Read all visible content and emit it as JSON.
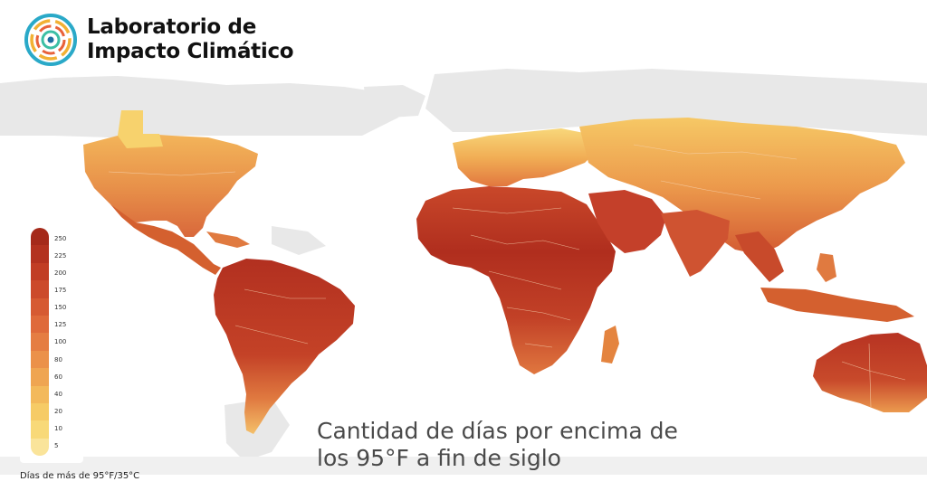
{
  "brand": {
    "line1": "Laboratorio de",
    "line2": "Impacto Climático"
  },
  "title": {
    "line1": "Cantidad de días por encima de",
    "line2": "los 95°F a fin de siglo"
  },
  "legend": {
    "caption": "Días de más de 95°F/35°C",
    "ticks": [
      "250",
      "225",
      "200",
      "175",
      "150",
      "125",
      "100",
      "80",
      "60",
      "40",
      "20",
      "10",
      "5"
    ],
    "colors": [
      "#a52a1a",
      "#b3321f",
      "#c13d24",
      "#cc4a2b",
      "#d65a32",
      "#df6a3a",
      "#e57d42",
      "#eb914a",
      "#efa552",
      "#f3b95b",
      "#f6cb66",
      "#f8d978",
      "#fae49a"
    ]
  },
  "colors": {
    "land_no_data": "#e8e8e8",
    "hot": "#b83622",
    "warm": "#d9623a",
    "mild": "#f2b255"
  }
}
